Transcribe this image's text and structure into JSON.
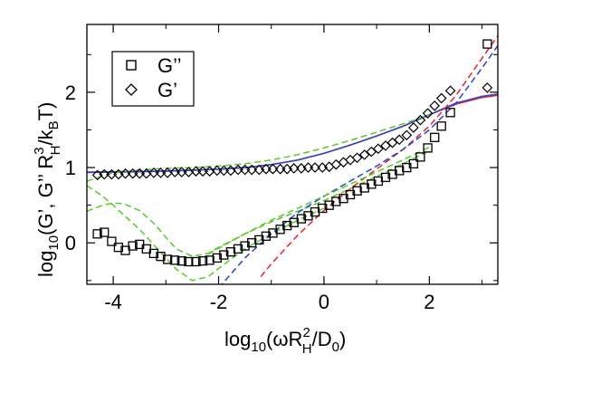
{
  "chart_data": {
    "type": "scatter",
    "xlim": [
      -4.5,
      3.3
    ],
    "ylim": [
      -0.55,
      2.9
    ],
    "x_ticks": [
      -4,
      -2,
      0,
      2
    ],
    "y_ticks": [
      0,
      1,
      2
    ],
    "x_tick_labels": [
      "-4",
      "-2",
      "0",
      "2"
    ],
    "y_tick_labels": [
      "0",
      "1",
      "2"
    ],
    "xlabel": {
      "prefix": "log",
      "sub": "10",
      "open": "(ωR",
      "sup": "2",
      "sub2": "H",
      "close": "/D",
      "sub3": "0",
      "end": ")"
    },
    "ylabel": {
      "prefix": "log",
      "sub": "10",
      "body": "(G’, G’’ R",
      "sup": "3",
      "sub2": "H",
      "mid": "/k",
      "sub3": "B",
      "end": "T)"
    },
    "legend": {
      "position": "top-left",
      "entries": [
        {
          "label": "G’’",
          "marker": "square"
        },
        {
          "label": "G’",
          "marker": "diamond"
        }
      ]
    },
    "series": [
      {
        "name": "G’’",
        "marker": "square",
        "x": [
          -4.3,
          -4.17,
          -4.03,
          -3.9,
          -3.77,
          -3.63,
          -3.5,
          -3.37,
          -3.23,
          -3.1,
          -2.97,
          -2.83,
          -2.7,
          -2.57,
          -2.43,
          -2.3,
          -2.17,
          -2.03,
          -1.9,
          -1.77,
          -1.63,
          -1.5,
          -1.37,
          -1.23,
          -1.1,
          -0.97,
          -0.83,
          -0.7,
          -0.57,
          -0.43,
          -0.3,
          -0.17,
          -0.03,
          0.1,
          0.23,
          0.37,
          0.5,
          0.63,
          0.77,
          0.9,
          1.03,
          1.17,
          1.3,
          1.43,
          1.57,
          1.7,
          1.83,
          1.97,
          2.1,
          2.23,
          2.4,
          3.1
        ],
        "y": [
          0.12,
          0.14,
          0.02,
          -0.06,
          -0.1,
          -0.04,
          -0.02,
          -0.08,
          -0.14,
          -0.18,
          -0.22,
          -0.23,
          -0.24,
          -0.25,
          -0.25,
          -0.24,
          -0.23,
          -0.2,
          -0.16,
          -0.12,
          -0.08,
          -0.04,
          0.0,
          0.04,
          0.09,
          0.13,
          0.18,
          0.23,
          0.27,
          0.32,
          0.36,
          0.41,
          0.46,
          0.5,
          0.55,
          0.59,
          0.64,
          0.69,
          0.73,
          0.78,
          0.82,
          0.87,
          0.91,
          0.96,
          1.0,
          1.05,
          1.14,
          1.26,
          1.4,
          1.55,
          1.73,
          2.64
        ]
      },
      {
        "name": "G’",
        "marker": "diamond",
        "x": [
          -4.3,
          -4.17,
          -4.03,
          -3.9,
          -3.77,
          -3.63,
          -3.5,
          -3.37,
          -3.23,
          -3.1,
          -2.97,
          -2.83,
          -2.7,
          -2.57,
          -2.43,
          -2.3,
          -2.17,
          -2.03,
          -1.9,
          -1.77,
          -1.63,
          -1.5,
          -1.37,
          -1.23,
          -1.1,
          -0.97,
          -0.83,
          -0.7,
          -0.57,
          -0.43,
          -0.3,
          -0.17,
          -0.03,
          0.1,
          0.23,
          0.37,
          0.5,
          0.63,
          0.77,
          0.9,
          1.03,
          1.17,
          1.3,
          1.43,
          1.57,
          1.7,
          1.83,
          1.97,
          2.1,
          2.23,
          2.4,
          3.1
        ],
        "y": [
          0.9,
          0.91,
          0.91,
          0.91,
          0.92,
          0.92,
          0.92,
          0.92,
          0.93,
          0.93,
          0.93,
          0.94,
          0.94,
          0.94,
          0.95,
          0.95,
          0.95,
          0.96,
          0.96,
          0.96,
          0.97,
          0.97,
          0.97,
          0.97,
          0.98,
          0.98,
          0.98,
          0.98,
          0.99,
          0.99,
          1.0,
          1.0,
          1.0,
          1.01,
          1.04,
          1.07,
          1.1,
          1.13,
          1.17,
          1.21,
          1.25,
          1.29,
          1.33,
          1.37,
          1.43,
          1.53,
          1.63,
          1.72,
          1.82,
          1.92,
          2.02,
          2.06
        ]
      }
    ],
    "curves": [
      {
        "name": "fit-G’-solid",
        "style": "solid",
        "color": "#ee2222",
        "x": [
          -4.5,
          -4,
          -3.5,
          -3,
          -2.5,
          -2,
          -1.5,
          -1,
          -0.5,
          0,
          0.5,
          1,
          1.5,
          2,
          2.5,
          3,
          3.3
        ],
        "y": [
          0.94,
          0.944,
          0.948,
          0.955,
          0.966,
          0.98,
          1.0,
          1.04,
          1.1,
          1.19,
          1.3,
          1.42,
          1.55,
          1.7,
          1.84,
          1.93,
          1.96
        ]
      },
      {
        "name": "fit-G’-solid-blue",
        "style": "solid",
        "color": "#2244dd",
        "x": [
          -4.5,
          -4,
          -3.5,
          -3,
          -2.5,
          -2,
          -1.5,
          -1,
          -0.5,
          0,
          0.5,
          1,
          1.5,
          2,
          2.5,
          3,
          3.3
        ],
        "y": [
          0.935,
          0.939,
          0.944,
          0.952,
          0.963,
          0.978,
          0.998,
          1.038,
          1.098,
          1.188,
          1.298,
          1.418,
          1.548,
          1.7,
          1.855,
          1.945,
          1.975
        ]
      },
      {
        "name": "fit-G’-green-dashed",
        "style": "dashed",
        "color": "#55cc22",
        "x": [
          -4.5,
          -4,
          -3.5,
          -3,
          -2.5,
          -2,
          -1.5,
          -1,
          -0.5,
          0,
          0.5,
          1,
          1.5,
          2
        ],
        "y": [
          0.82,
          0.93,
          0.97,
          0.99,
          1.0,
          1.02,
          1.05,
          1.1,
          1.17,
          1.26,
          1.36,
          1.47,
          1.58,
          1.7
        ]
      },
      {
        "name": "fit-G’’-green-dashed-upper",
        "style": "dashed",
        "color": "#55cc22",
        "x": [
          -4.5,
          -4.2,
          -4,
          -3.8,
          -3.5,
          -3.2,
          -3,
          -2.8,
          -2.5,
          -2.2,
          -2,
          -1.5,
          -1,
          -0.5,
          0,
          0.5,
          1,
          1.5,
          2
        ],
        "y": [
          0.42,
          0.5,
          0.53,
          0.52,
          0.43,
          0.24,
          0.07,
          -0.08,
          -0.18,
          -0.14,
          -0.06,
          0.12,
          0.28,
          0.42,
          0.56,
          0.72,
          0.88,
          1.05,
          1.22
        ]
      },
      {
        "name": "fit-G’’-green-dashed-lower",
        "style": "dashed",
        "color": "#55cc22",
        "x": [
          -4.5,
          -4.2,
          -4,
          -3.8,
          -3.5,
          -3.2,
          -3,
          -2.8,
          -2.5,
          -2.2,
          -2,
          -1.5,
          -1,
          -0.5,
          0
        ],
        "y": [
          0.76,
          0.62,
          0.5,
          0.37,
          0.18,
          -0.05,
          -0.2,
          -0.35,
          -0.5,
          -0.45,
          -0.34,
          -0.08,
          0.12,
          0.3,
          0.46
        ]
      },
      {
        "name": "fit-G’’-red-dashed",
        "style": "dashed",
        "color": "#ee2222",
        "x": [
          -1.2,
          -1,
          -0.5,
          0,
          0.5,
          1,
          1.5,
          2,
          2.5,
          3,
          3.3
        ],
        "y": [
          -0.45,
          -0.28,
          0.1,
          0.43,
          0.72,
          0.98,
          1.24,
          1.55,
          1.95,
          2.45,
          2.75
        ]
      },
      {
        "name": "fit-G’’-blue-dashed",
        "style": "dashed",
        "color": "#2244dd",
        "x": [
          -2,
          -1.5,
          -1,
          -0.5,
          0,
          0.5,
          1,
          1.5,
          2,
          2.5,
          3,
          3.3
        ],
        "y": [
          -0.6,
          -0.2,
          0.12,
          0.4,
          0.62,
          0.82,
          1.02,
          1.24,
          1.5,
          1.85,
          2.32,
          2.62
        ]
      },
      {
        "name": "fit-G’’-green-asymptote",
        "style": "dashed",
        "color": "#55cc22",
        "x": [
          -2.2,
          -1.5,
          -1,
          -0.5,
          0,
          0.5,
          1,
          1.5,
          2
        ],
        "y": [
          -0.15,
          0.12,
          0.3,
          0.46,
          0.62,
          0.78,
          0.94,
          1.1,
          1.27
        ]
      }
    ]
  }
}
